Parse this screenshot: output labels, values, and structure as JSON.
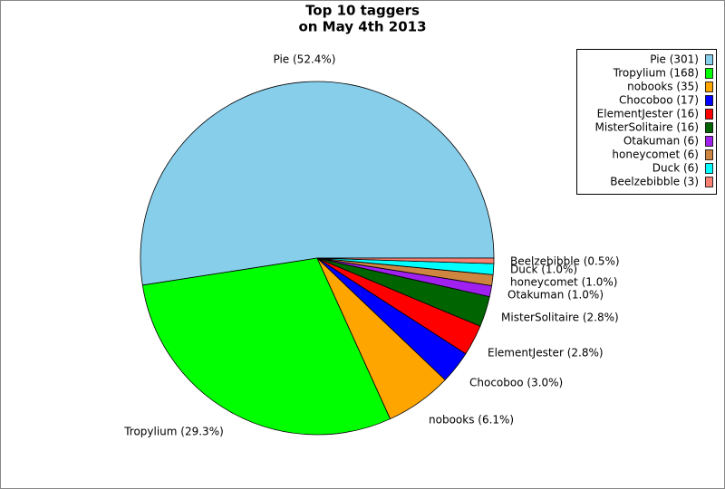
{
  "chart_data": {
    "type": "pie",
    "title": [
      "Top 10 taggers",
      "on May 4th 2013"
    ],
    "categories": [
      "Pie (301)",
      "Tropylium (168)",
      "nobooks (35)",
      "Chocoboo (17)",
      "ElementJester (16)",
      "MisterSolitaire (16)",
      "Otakuman (6)",
      "honeycomet (6)",
      "Duck (6)",
      "Beelzebibble (3)"
    ],
    "values": [
      52.4,
      29.3,
      6.1,
      3.0,
      2.8,
      2.8,
      1.0,
      1.0,
      1.0,
      0.5
    ],
    "value_labels": [
      "Pie (52.4%)",
      "Tropylium (29.3%)",
      "nobooks (6.1%)",
      "Chocoboo (3.0%)",
      "ElementJester (2.8%)",
      "MisterSolitaire (2.8%)",
      "Otakuman (1.0%)",
      "honeycomet (1.0%)",
      "Duck (1.0%)",
      "Beelzebibble (0.5%)"
    ],
    "colors": [
      "#87ceeb",
      "#00ff00",
      "#ffa500",
      "#0000ff",
      "#ff0000",
      "#006400",
      "#a020f0",
      "#cd853f",
      "#00ffff",
      "#fa8072"
    ],
    "legend_position": "upper right"
  }
}
